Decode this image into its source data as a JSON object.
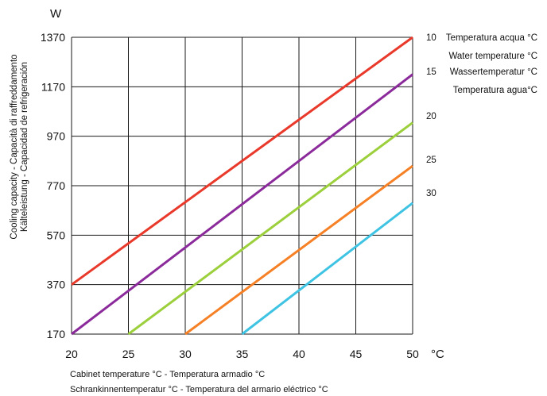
{
  "chart_data": {
    "type": "line",
    "y_unit": "W",
    "x_unit": "°C",
    "ylabel_lines": [
      "Cooling capacity - Capacità di raffreddamento",
      "Kälteleistung - Capacidad de refrigeración"
    ],
    "xlabel_lines": [
      "Cabinet temperature °C - Temperatura armadio °C",
      "Schrankinnentemperatur °C - Temperatura del armario eléctrico °C"
    ],
    "legend_title_lines": [
      "Temperatura acqua °C",
      "Water temperature °C",
      "Wassertemperatur °C",
      "Temperatura agua°C"
    ],
    "xlim": [
      20,
      50
    ],
    "ylim": [
      170,
      1370
    ],
    "x_ticks": [
      20,
      25,
      30,
      35,
      40,
      45,
      50
    ],
    "y_ticks": [
      170,
      370,
      570,
      770,
      970,
      1170,
      1370
    ],
    "grid": true,
    "series": [
      {
        "name": "10",
        "color": "#e8392b",
        "points": [
          [
            20,
            370
          ],
          [
            50,
            1370
          ]
        ]
      },
      {
        "name": "15",
        "color": "#8b2a9a",
        "points": [
          [
            20,
            170
          ],
          [
            50,
            1220
          ]
        ]
      },
      {
        "name": "20",
        "color": "#9ccf3c",
        "points": [
          [
            25,
            170
          ],
          [
            50,
            1025
          ]
        ]
      },
      {
        "name": "25",
        "color": "#f58025",
        "points": [
          [
            30,
            170
          ],
          [
            50,
            850
          ]
        ]
      },
      {
        "name": "30",
        "color": "#3ec3e3",
        "points": [
          [
            35,
            170
          ],
          [
            50,
            700
          ]
        ]
      }
    ]
  }
}
